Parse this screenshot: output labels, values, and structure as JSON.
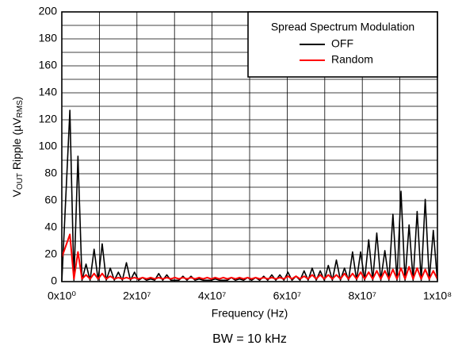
{
  "chart_data": {
    "type": "line",
    "y_label_parts": [
      "V",
      "OUT",
      " Ripple (µV",
      "RMS",
      ")"
    ],
    "x_label": "Frequency (Hz)",
    "footnote": "BW = 10 kHz",
    "legend": {
      "title": "Spread Spectrum Modulation",
      "position": "upper right"
    },
    "grid": true,
    "xlim": [
      0,
      100000000
    ],
    "ylim": [
      0,
      200
    ],
    "xticks": [
      {
        "value": 0,
        "label": "0x10⁰"
      },
      {
        "value": 20000000,
        "label": "2x10⁷"
      },
      {
        "value": 40000000,
        "label": "4x10⁷"
      },
      {
        "value": 60000000,
        "label": "6x10⁷"
      },
      {
        "value": 80000000,
        "label": "8x10⁷"
      },
      {
        "value": 100000000,
        "label": "1x10⁸"
      }
    ],
    "yticks": [
      0,
      20,
      40,
      60,
      80,
      100,
      120,
      140,
      160,
      180,
      200
    ],
    "x_minor_ticks": [
      10000000,
      30000000,
      50000000,
      70000000,
      90000000
    ],
    "y_minor_ticks": [
      10,
      30,
      50,
      70,
      90,
      110,
      130,
      150,
      170,
      190
    ],
    "x": [
      0,
      2150000,
      3225000,
      4300000,
      5375000,
      6450000,
      7525000,
      8600000,
      9675000,
      10750000,
      11825000,
      12900000,
      13975000,
      15050000,
      16125000,
      17200000,
      18275000,
      19350000,
      20425000,
      21500000,
      22575000,
      23650000,
      24725000,
      25800000,
      26875000,
      27950000,
      29025000,
      30100000,
      31175000,
      32250000,
      33325000,
      34400000,
      35475000,
      36550000,
      37625000,
      38700000,
      39775000,
      40850000,
      41925000,
      43000000,
      44075000,
      45150000,
      46225000,
      47300000,
      48375000,
      49450000,
      50525000,
      51600000,
      52675000,
      53750000,
      54825000,
      55900000,
      56975000,
      58050000,
      59125000,
      60200000,
      61275000,
      62350000,
      63425000,
      64500000,
      65575000,
      66650000,
      67725000,
      68800000,
      69875000,
      70950000,
      72025000,
      73100000,
      74175000,
      75250000,
      76325000,
      77400000,
      78475000,
      79550000,
      80625000,
      81700000,
      82775000,
      83850000,
      84925000,
      86000000,
      87075000,
      88150000,
      89225000,
      90300000,
      91375000,
      92450000,
      93525000,
      94600000,
      95675000,
      96750000,
      97825000,
      98900000,
      99975000
    ],
    "series": [
      {
        "name": "OFF",
        "color": "#000000",
        "values": [
          0,
          127,
          1,
          93,
          1,
          13,
          1,
          24,
          1,
          28,
          1,
          10,
          1,
          7,
          1,
          14,
          1,
          7,
          1,
          3,
          1,
          2,
          1,
          6,
          1,
          5,
          1,
          1,
          1,
          4,
          1,
          4,
          1,
          2,
          1,
          1,
          1,
          2,
          1,
          1,
          1,
          3,
          1,
          2,
          1,
          3,
          1,
          3,
          1,
          4,
          1,
          5,
          1,
          5,
          1,
          7,
          1,
          4,
          1,
          8,
          1,
          10,
          1,
          8,
          1,
          12,
          1,
          16,
          1,
          10,
          1,
          22,
          1,
          22,
          1,
          31,
          1,
          36,
          1,
          23,
          1,
          50,
          1,
          67,
          1,
          42,
          1,
          52,
          1,
          61,
          1,
          38,
          1
        ]
      },
      {
        "name": "Random",
        "color": "#ff0000",
        "values": [
          18,
          35,
          2,
          22,
          2,
          5,
          2,
          6,
          2,
          6,
          2,
          4,
          2,
          3,
          2,
          3,
          2,
          3,
          2,
          3,
          2,
          3,
          2,
          3,
          2,
          3,
          2,
          3,
          2,
          3,
          2,
          3,
          2,
          3,
          2,
          3,
          2,
          3,
          2,
          3,
          2,
          3,
          2,
          3,
          2,
          3,
          2,
          3,
          2,
          3,
          2,
          3,
          2,
          3,
          2,
          4,
          2,
          4,
          2,
          4,
          2,
          5,
          2,
          5,
          2,
          5,
          2,
          5,
          2,
          6,
          2,
          6,
          2,
          7,
          2,
          7,
          2,
          8,
          2,
          8,
          2,
          9,
          2,
          10,
          2,
          11,
          2,
          10,
          2,
          9,
          2,
          8,
          2
        ]
      }
    ]
  }
}
